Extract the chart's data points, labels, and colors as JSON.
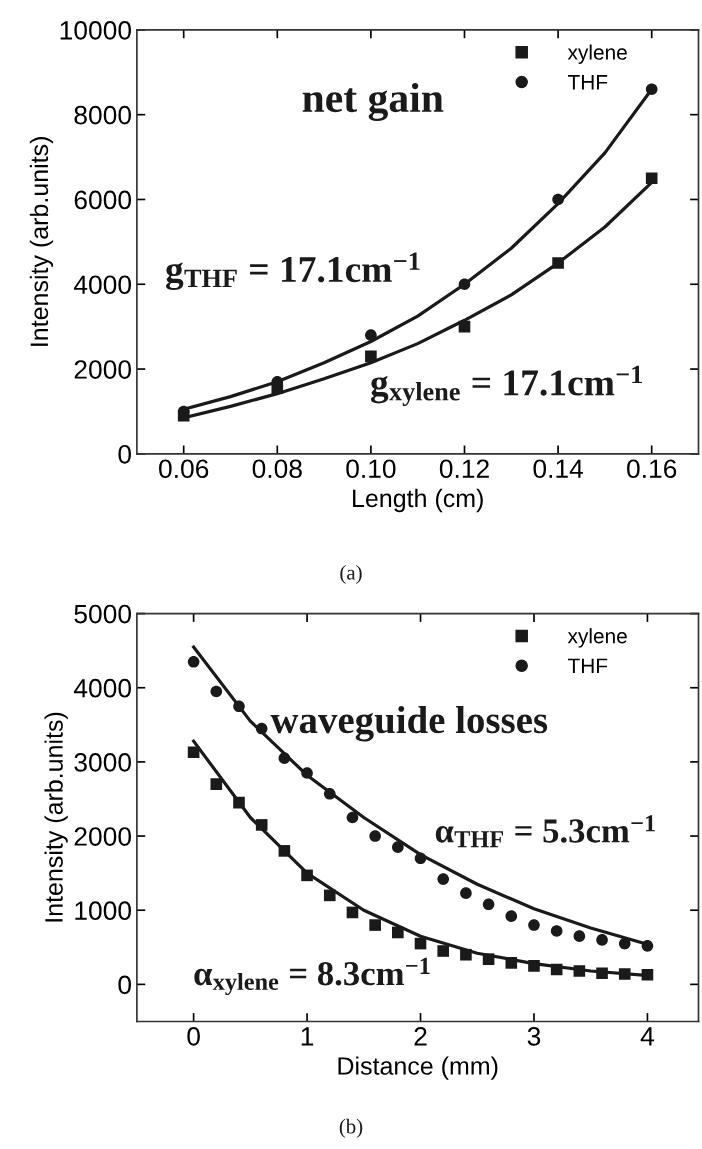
{
  "chart_data": [
    {
      "type": "scatter",
      "xlabel": "Length (cm)",
      "ylabel": "Intensity (arb.units)",
      "x": [
        0.06,
        0.08,
        0.1,
        0.12,
        0.14,
        0.16
      ],
      "series": [
        {
          "name": "xylene",
          "color": "#1a1a1a",
          "marker": "square",
          "values": [
            900,
            1550,
            2300,
            3000,
            4500,
            6500
          ]
        },
        {
          "name": "THF",
          "color": "#1a1a1a",
          "marker": "circle",
          "values": [
            1000,
            1700,
            2800,
            4000,
            6000,
            8600
          ]
        },
        {
          "type": "line",
          "color": "#1a1a1a",
          "x": [
            0.06,
            0.07,
            0.08,
            0.09,
            0.1,
            0.11,
            0.12,
            0.13,
            0.14,
            0.15,
            0.16
          ],
          "values": [
            850,
            1120,
            1420,
            1770,
            2150,
            2600,
            3150,
            3750,
            4500,
            5350,
            6400
          ]
        },
        {
          "type": "line",
          "color": "#1a1a1a",
          "x": [
            0.06,
            0.07,
            0.08,
            0.09,
            0.1,
            0.11,
            0.12,
            0.13,
            0.14,
            0.15,
            0.16
          ],
          "values": [
            1050,
            1350,
            1700,
            2150,
            2650,
            3250,
            4000,
            4850,
            5900,
            7100,
            8600
          ]
        }
      ],
      "xlim": [
        0.05,
        0.17
      ],
      "ylim": [
        0,
        10000
      ],
      "xticks": [
        {
          "value": 0.06,
          "label": "0.06"
        },
        {
          "value": 0.08,
          "label": "0.08"
        },
        {
          "value": 0.1,
          "label": "0.10"
        },
        {
          "value": 0.12,
          "label": "0.12"
        },
        {
          "value": 0.14,
          "label": "0.14"
        },
        {
          "value": 0.16,
          "label": "0.16"
        }
      ],
      "yticks": [
        0,
        2000,
        4000,
        6000,
        8000,
        10000
      ],
      "legend": "top right",
      "grid": false,
      "annotations": [
        "net gain",
        "g$_{THF}$ = 17.1cm$^{−1}$",
        "g$_{xylene}$ = 17.1cm$^{−1}$",
        "(a)"
      ]
    },
    {
      "type": "scatter",
      "xlabel": "Distance (mm)",
      "ylabel": "Intensity (arb.units)",
      "x": [
        0,
        0.2,
        0.4,
        0.6,
        0.8,
        1,
        1.2,
        1.4,
        1.6,
        1.8,
        2,
        2.2,
        2.4,
        2.6,
        2.8,
        3,
        3.2,
        3.4,
        3.6,
        3.8,
        4
      ],
      "series": [
        {
          "name": "xylene",
          "color": "#1a1a1a",
          "marker": "square",
          "values": [
            3130,
            2700,
            2450,
            2150,
            1800,
            1470,
            1200,
            970,
            800,
            700,
            550,
            450,
            400,
            340,
            290,
            250,
            200,
            180,
            150,
            140,
            130
          ]
        },
        {
          "name": "THF",
          "color": "#1a1a1a",
          "marker": "circle",
          "values": [
            4350,
            3950,
            3750,
            3450,
            3050,
            2850,
            2570,
            2250,
            2000,
            1850,
            1700,
            1420,
            1230,
            1080,
            920,
            800,
            720,
            650,
            600,
            550,
            520
          ]
        },
        {
          "type": "line",
          "color": "#1a1a1a",
          "x": [
            0,
            0.5,
            1,
            1.5,
            2,
            2.5,
            3,
            3.5,
            4
          ],
          "values": [
            3280,
            2250,
            1500,
            1000,
            650,
            420,
            280,
            180,
            120
          ]
        },
        {
          "type": "line",
          "color": "#1a1a1a",
          "x": [
            0,
            0.5,
            1,
            1.5,
            2,
            2.5,
            3,
            3.5,
            4
          ],
          "values": [
            4550,
            3550,
            2820,
            2250,
            1750,
            1350,
            1020,
            760,
            540
          ]
        }
      ],
      "xlim": [
        -0.5,
        4.45
      ],
      "ylim": [
        -500,
        5000
      ],
      "xticks": [
        0,
        1,
        2,
        3,
        4
      ],
      "yticks": [
        0,
        1000,
        2000,
        3000,
        4000,
        5000
      ],
      "legend": "top right",
      "grid": false,
      "annotations": [
        "waveguide losses",
        "α$_{THF}$ = 5.3cm$^{−1}$",
        "α$_{xylene}$ = 8.3cm$^{−1}$",
        "(b)"
      ]
    }
  ]
}
